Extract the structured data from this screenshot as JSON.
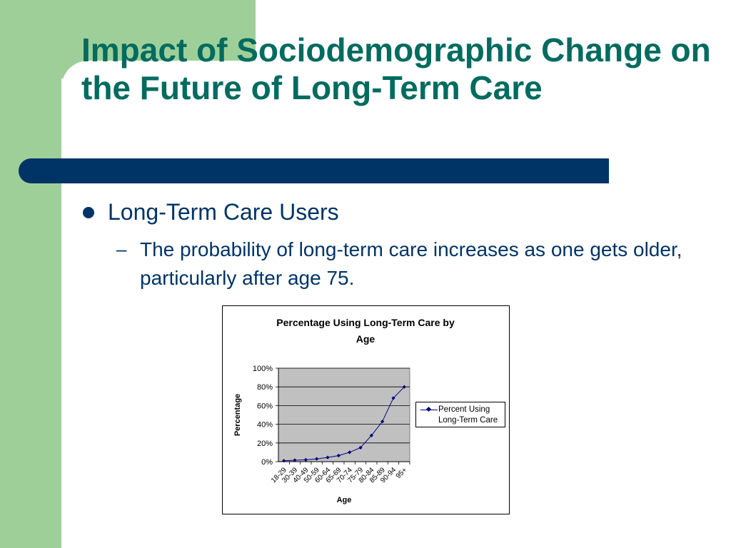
{
  "slide": {
    "title": "Impact of Sociodemographic Change on the Future of Long-Term Care",
    "bullet": "Long-Term Care Users",
    "sub_bullet": "The probability of long-term care increases as one gets older, particularly after age 75."
  },
  "colors": {
    "title": "#006b5f",
    "accent_bar": "#003466",
    "sidebar": "#9fcf99",
    "plot_area": "#c0c0c0",
    "series": "#000080"
  },
  "chart_data": {
    "type": "line",
    "title": "Percentage Using Long-Term Care by Age",
    "xlabel": "Age",
    "ylabel": "Percentage",
    "categories": [
      "18-29",
      "30-39",
      "40-49",
      "50-59",
      "60-64",
      "65-69",
      "70-74",
      "75-79",
      "80-84",
      "85-89",
      "90-94",
      "95+"
    ],
    "yticks": [
      "0%",
      "20%",
      "40%",
      "60%",
      "80%",
      "100%"
    ],
    "ylim": [
      0,
      100
    ],
    "grid": true,
    "legend_position": "right",
    "series": [
      {
        "name": "Percent Using Long-Term Care",
        "values": [
          1,
          1.5,
          2,
          3,
          4.5,
          6.5,
          10,
          15,
          28,
          43,
          68,
          80
        ]
      }
    ]
  }
}
